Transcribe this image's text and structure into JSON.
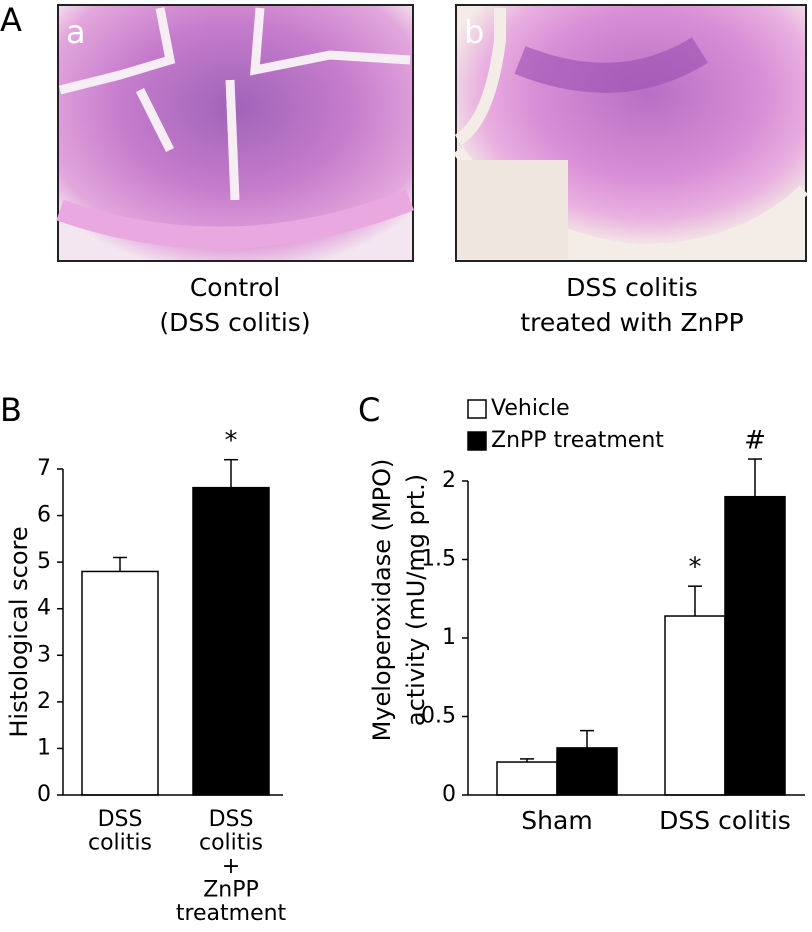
{
  "panel_a": {
    "label": "A",
    "images": [
      {
        "label": "a",
        "caption": [
          "Control",
          "(DSS colitis)"
        ]
      },
      {
        "label": "b",
        "caption": [
          "DSS colitis",
          "treated with ZnPP"
        ]
      }
    ]
  },
  "chart_data": [
    {
      "type": "bar",
      "panel_label": "B",
      "y_label": [
        "Histological score"
      ],
      "categories": [
        [
          "DSS",
          "colitis"
        ],
        [
          "DSS",
          "colitis",
          "+",
          "ZnPP",
          "treatment"
        ]
      ],
      "series": [
        {
          "colors": [
            "#ffffff",
            "#000000"
          ],
          "values": [
            4.8,
            6.6
          ],
          "errors": [
            0.3,
            0.6
          ]
        }
      ],
      "ylim": [
        0,
        7
      ],
      "yticks": [
        0,
        1,
        2,
        3,
        4,
        5,
        6,
        7
      ],
      "annotations": [
        {
          "text": "*",
          "series": 0,
          "category": 1
        }
      ]
    },
    {
      "type": "bar",
      "panel_label": "C",
      "y_label": [
        "Myeloperoxidase (MPO)",
        "activity (mU/mg prt.)"
      ],
      "categories": [
        [
          "Sham"
        ],
        [
          "DSS colitis"
        ]
      ],
      "series": [
        {
          "name": "Vehicle",
          "color": "#ffffff",
          "values": [
            0.21,
            1.14
          ],
          "errors": [
            0.02,
            0.19
          ]
        },
        {
          "name": "ZnPP treatment",
          "color": "#000000",
          "values": [
            0.3,
            1.9
          ],
          "errors": [
            0.11,
            0.24
          ]
        }
      ],
      "ylim": [
        0,
        2
      ],
      "yticks": [
        0,
        0.5,
        1,
        1.5,
        2
      ],
      "annotations": [
        {
          "text": "*",
          "series": 0,
          "category": 1
        },
        {
          "text": "#",
          "series": 1,
          "category": 1
        }
      ]
    }
  ]
}
